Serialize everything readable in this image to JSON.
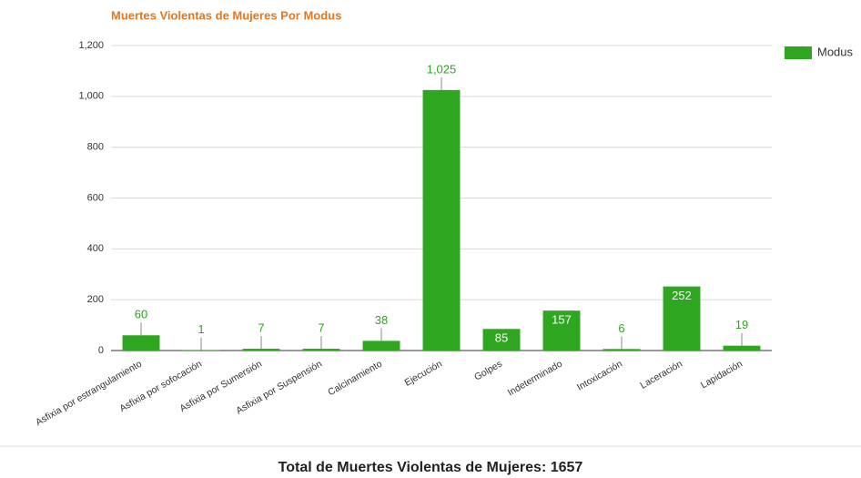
{
  "chart_data": {
    "type": "bar",
    "title": "Muertes Violentas de Mujeres Por Modus",
    "categories": [
      "Asfixia por estrangulamiento",
      "Asfixia por sofocación",
      "Asfixia por Sumersión",
      "Asfixia por Suspensión",
      "Calcinamiento",
      "Ejecución",
      "Golpes",
      "Indeterminado",
      "Intoxicación",
      "Laceración",
      "Lapidación"
    ],
    "series": [
      {
        "name": "Modus",
        "color": "#2ea61f",
        "values": [
          60,
          1,
          7,
          7,
          38,
          1025,
          85,
          157,
          6,
          252,
          19
        ],
        "value_labels": [
          "60",
          "1",
          "7",
          "7",
          "38",
          "1,025",
          "85",
          "157",
          "6",
          "252",
          "19"
        ]
      }
    ],
    "ylim": [
      0,
      1200
    ],
    "yticks": [
      0,
      200,
      400,
      600,
      800,
      {
        "value": 1000,
        "label": "1,000"
      },
      {
        "value": 1200,
        "label": "1,200"
      }
    ],
    "grid": true,
    "legend": "right",
    "caption": "Total de Muertes Violentas de Mujeres: 1657"
  }
}
